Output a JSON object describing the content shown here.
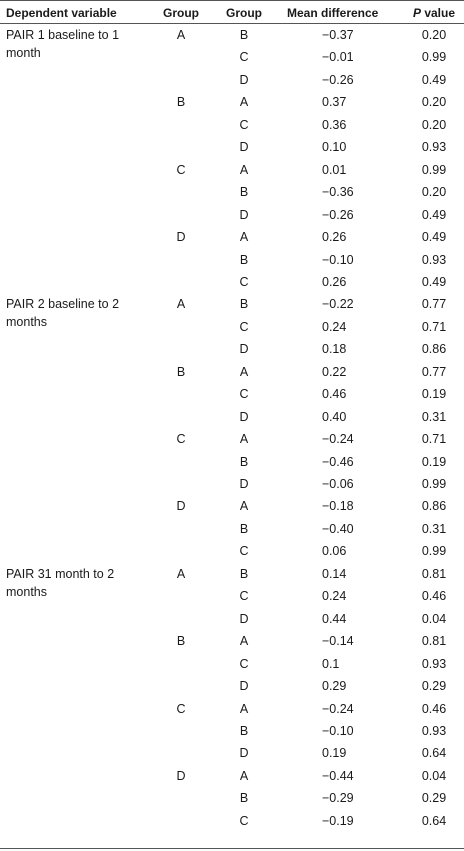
{
  "headers": {
    "dependent_variable": "Dependent variable",
    "group_1": "Group",
    "group_2": "Group",
    "mean_difference": "Mean difference",
    "p_letter": "P",
    "p_word": " value"
  },
  "rows": [
    {
      "dv": "PAIR 1  baseline to 1 month",
      "g1": "A",
      "g2": "B",
      "md": "−0.37",
      "p": "0.20"
    },
    {
      "dv": "",
      "g1": "",
      "g2": "C",
      "md": "−0.01",
      "p": "0.99"
    },
    {
      "dv": "",
      "g1": "",
      "g2": "D",
      "md": "−0.26",
      "p": "0.49"
    },
    {
      "dv": "",
      "g1": "B",
      "g2": "A",
      "md": "0.37",
      "p": "0.20"
    },
    {
      "dv": "",
      "g1": "",
      "g2": "C",
      "md": "0.36",
      "p": "0.20"
    },
    {
      "dv": "",
      "g1": "",
      "g2": "D",
      "md": "0.10",
      "p": "0.93"
    },
    {
      "dv": "",
      "g1": "C",
      "g2": "A",
      "md": "0.01",
      "p": "0.99"
    },
    {
      "dv": "",
      "g1": "",
      "g2": "B",
      "md": "−0.36",
      "p": "0.20"
    },
    {
      "dv": "",
      "g1": "",
      "g2": "D",
      "md": "−0.26",
      "p": "0.49"
    },
    {
      "dv": "",
      "g1": "D",
      "g2": "A",
      "md": "0.26",
      "p": "0.49"
    },
    {
      "dv": "",
      "g1": "",
      "g2": "B",
      "md": "−0.10",
      "p": "0.93"
    },
    {
      "dv": "",
      "g1": "",
      "g2": "C",
      "md": "0.26",
      "p": "0.49"
    },
    {
      "dv": "PAIR 2 baseline to 2 months",
      "g1": "A",
      "g2": "B",
      "md": "−0.22",
      "p": "0.77"
    },
    {
      "dv": "",
      "g1": "",
      "g2": "C",
      "md": "0.24",
      "p": "0.71"
    },
    {
      "dv": "",
      "g1": "",
      "g2": "D",
      "md": "0.18",
      "p": "0.86"
    },
    {
      "dv": "",
      "g1": "B",
      "g2": "A",
      "md": "0.22",
      "p": "0.77"
    },
    {
      "dv": "",
      "g1": "",
      "g2": "C",
      "md": "0.46",
      "p": "0.19"
    },
    {
      "dv": "",
      "g1": "",
      "g2": "D",
      "md": "0.40",
      "p": "0.31"
    },
    {
      "dv": "",
      "g1": "C",
      "g2": "A",
      "md": "−0.24",
      "p": "0.71"
    },
    {
      "dv": "",
      "g1": "",
      "g2": "B",
      "md": "−0.46",
      "p": "0.19"
    },
    {
      "dv": "",
      "g1": "",
      "g2": "D",
      "md": "−0.06",
      "p": "0.99"
    },
    {
      "dv": "",
      "g1": "D",
      "g2": "A",
      "md": "−0.18",
      "p": "0.86"
    },
    {
      "dv": "",
      "g1": "",
      "g2": "B",
      "md": "−0.40",
      "p": "0.31"
    },
    {
      "dv": "",
      "g1": "",
      "g2": "C",
      "md": "0.06",
      "p": "0.99"
    },
    {
      "dv": "PAIR 31 month to 2 months",
      "g1": "A",
      "g2": "B",
      "md": "0.14",
      "p": "0.81"
    },
    {
      "dv": "",
      "g1": "",
      "g2": "C",
      "md": "0.24",
      "p": "0.46"
    },
    {
      "dv": "",
      "g1": "",
      "g2": "D",
      "md": "0.44",
      "p": "0.04"
    },
    {
      "dv": "",
      "g1": "B",
      "g2": "A",
      "md": "−0.14",
      "p": "0.81"
    },
    {
      "dv": "",
      "g1": "",
      "g2": "C",
      "md": "0.1",
      "p": "0.93"
    },
    {
      "dv": "",
      "g1": "",
      "g2": "D",
      "md": "0.29",
      "p": "0.29"
    },
    {
      "dv": "",
      "g1": "C",
      "g2": "A",
      "md": "−0.24",
      "p": "0.46"
    },
    {
      "dv": "",
      "g1": "",
      "g2": "B",
      "md": "−0.10",
      "p": "0.93"
    },
    {
      "dv": "",
      "g1": "",
      "g2": "D",
      "md": "0.19",
      "p": "0.64"
    },
    {
      "dv": "",
      "g1": "D",
      "g2": "A",
      "md": "−0.44",
      "p": "0.04"
    },
    {
      "dv": "",
      "g1": "",
      "g2": "B",
      "md": "−0.29",
      "p": "0.29"
    },
    {
      "dv": "",
      "g1": "",
      "g2": "C",
      "md": "−0.19",
      "p": "0.64"
    }
  ]
}
